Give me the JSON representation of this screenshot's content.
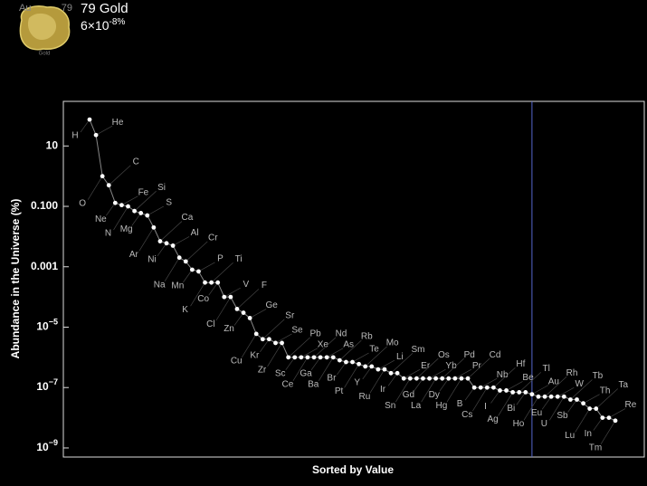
{
  "header": {
    "tile": {
      "symbol": "Au",
      "number": "79",
      "name": "Gold"
    },
    "title": "79 Gold",
    "abundance": "6×10",
    "abundance_exp": "-8%"
  },
  "chart_data": {
    "type": "line",
    "ylabel": "Abundance in the Universe (%)",
    "xlabel": "Sorted by Value",
    "log_y": true,
    "ylim": [
      5e-10,
      300
    ],
    "yticks": [
      10,
      {
        "value": 0.1,
        "label": "0.100"
      },
      0.001,
      {
        "value": 1e-05,
        "label": "10",
        "exponent": "−5"
      },
      {
        "value": 1e-07,
        "label": "10",
        "exponent": "−7"
      },
      {
        "value": 1e-09,
        "label": "10",
        "exponent": "−9"
      }
    ],
    "line_color": "#888888",
    "marker_color": "#ffffff",
    "highlight_color": "#5566cc",
    "categories": [
      "H",
      "He",
      "O",
      "C",
      "Ne",
      "Fe",
      "N",
      "Si",
      "Mg",
      "S",
      "Ar",
      "Ca",
      "Ni",
      "Al",
      "Na",
      "Cr",
      "Mn",
      "P",
      "K",
      "Ti",
      "Co",
      "V",
      "Cl",
      "F",
      "Zn",
      "Ge",
      "Cu",
      "Sr",
      "Kr",
      "Se",
      "Zr",
      "Pb",
      "Sc",
      "Xe",
      "Ce",
      "Nd",
      "Ga",
      "As",
      "Ba",
      "Rb",
      "Br",
      "Te",
      "Pt",
      "Mo",
      "Y",
      "Li",
      "Ru",
      "Sm",
      "Ir",
      "Er",
      "Sn",
      "Os",
      "Gd",
      "Yb",
      "La",
      "Pd",
      "Dy",
      "Pr",
      "Hg",
      "Cd",
      "B",
      "Nb",
      "Cs",
      "Hf",
      "I",
      "Be",
      "Ag",
      "Tl",
      "Bi",
      "Au",
      "Ho",
      "Rh",
      "Eu",
      "W",
      "U",
      "Tb",
      "Sb",
      "Th",
      "Lu",
      "Ta",
      "In",
      "Re",
      "Tm"
    ],
    "values": [
      75,
      23,
      1,
      0.5,
      0.13,
      0.11,
      0.1,
      0.07,
      0.06,
      0.05,
      0.02,
      0.007,
      0.006,
      0.005,
      0.002,
      0.0015,
      0.0008,
      0.0007,
      0.0003,
      0.0003,
      0.0003,
      0.0001,
      0.0001,
      4e-05,
      3e-05,
      2e-05,
      6e-06,
      4e-06,
      4e-06,
      3e-06,
      3e-06,
      1e-06,
      1e-06,
      1e-06,
      1e-06,
      1e-06,
      1e-06,
      1e-06,
      1e-06,
      8e-07,
      7e-07,
      7e-07,
      6e-07,
      5e-07,
      5e-07,
      4e-07,
      4e-07,
      3e-07,
      3e-07,
      2e-07,
      2e-07,
      2e-07,
      2e-07,
      2e-07,
      2e-07,
      2e-07,
      2e-07,
      2e-07,
      2e-07,
      2e-07,
      1e-07,
      1e-07,
      1e-07,
      1e-07,
      8e-08,
      8e-08,
      7e-08,
      7e-08,
      7e-08,
      6e-08,
      5e-08,
      5e-08,
      5e-08,
      5e-08,
      5e-08,
      4e-08,
      4e-08,
      3e-08,
      2e-08,
      2e-08,
      1e-08,
      1e-08,
      8e-09
    ]
  }
}
